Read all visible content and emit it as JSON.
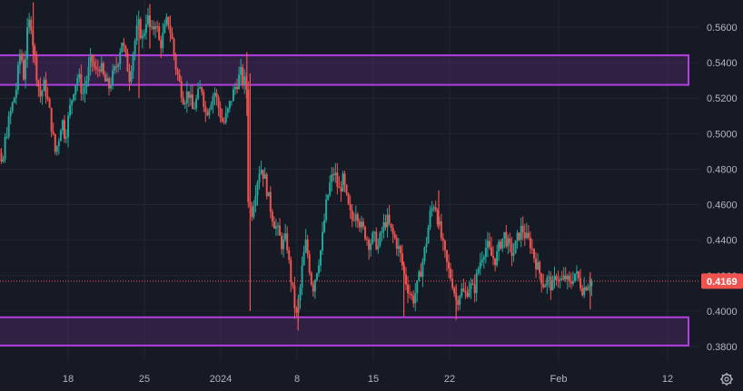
{
  "chart_data": {
    "type": "candlestick",
    "title": "",
    "colors": {
      "background": "#161a25",
      "grid": "#232632",
      "up": "#26a69a",
      "down": "#ef5350",
      "zone_fill": "#5b2a7a",
      "zone_border": "#b23fe0",
      "price_line": "#ef5350",
      "axis_text": "#b2b5be"
    },
    "y_axis": {
      "ylim": [
        0.37,
        0.575
      ],
      "ticks": [
        "0.5600",
        "0.5400",
        "0.5200",
        "0.5000",
        "0.4800",
        "0.4600",
        "0.4400",
        "0.4200",
        "0.4000",
        "0.3800"
      ],
      "tick_values": [
        0.56,
        0.54,
        0.52,
        0.5,
        0.48,
        0.46,
        0.44,
        0.42,
        0.4,
        0.38
      ],
      "position": "right"
    },
    "x_axis": {
      "ticks": [
        "18",
        "25",
        "2024",
        "8",
        "15",
        "22",
        "Feb",
        "12"
      ],
      "tick_days": [
        1,
        8,
        15,
        22,
        29,
        36,
        46,
        56
      ],
      "date_range_days": [
        -7,
        57
      ]
    },
    "last_price": {
      "label": "0.4169",
      "value": 0.4169
    },
    "zones": [
      {
        "name": "resistance-zone",
        "low": 0.5275,
        "high": 0.5442
      },
      {
        "name": "support-zone",
        "low": 0.3806,
        "high": 0.3965
      }
    ],
    "path": [
      [
        -7.0,
        0.468
      ],
      [
        -6.5,
        0.482
      ],
      [
        -6.0,
        0.495
      ],
      [
        -5.6,
        0.503
      ],
      [
        -5.2,
        0.491
      ],
      [
        -4.9,
        0.478
      ],
      [
        -4.6,
        0.497
      ],
      [
        -4.1,
        0.512
      ],
      [
        -3.6,
        0.525
      ],
      [
        -3.2,
        0.548
      ],
      [
        -2.9,
        0.532
      ],
      [
        -2.6,
        0.555
      ],
      [
        -2.3,
        0.566
      ],
      [
        -2.0,
        0.548
      ],
      [
        -1.7,
        0.533
      ],
      [
        -1.4,
        0.521
      ],
      [
        -1.0,
        0.528
      ],
      [
        -0.6,
        0.515
      ],
      [
        -0.3,
        0.502
      ],
      [
        0.0,
        0.489
      ],
      [
        0.3,
        0.497
      ],
      [
        0.6,
        0.509
      ],
      [
        0.9,
        0.498
      ],
      [
        1.3,
        0.513
      ],
      [
        1.7,
        0.526
      ],
      [
        2.1,
        0.533
      ],
      [
        2.5,
        0.522
      ],
      [
        2.9,
        0.531
      ],
      [
        3.3,
        0.543
      ],
      [
        3.7,
        0.534
      ],
      [
        4.1,
        0.539
      ],
      [
        4.5,
        0.53
      ],
      [
        4.9,
        0.526
      ],
      [
        5.3,
        0.533
      ],
      [
        5.7,
        0.54
      ],
      [
        6.1,
        0.553
      ],
      [
        6.4,
        0.544
      ],
      [
        6.8,
        0.532
      ],
      [
        7.2,
        0.549
      ],
      [
        7.6,
        0.562
      ],
      [
        8.0,
        0.553
      ],
      [
        8.4,
        0.567
      ],
      [
        8.8,
        0.556
      ],
      [
        9.2,
        0.564
      ],
      [
        9.6,
        0.549
      ],
      [
        10.0,
        0.558
      ],
      [
        10.3,
        0.565
      ],
      [
        10.7,
        0.553
      ],
      [
        11.0,
        0.539
      ],
      [
        11.4,
        0.528
      ],
      [
        11.8,
        0.519
      ],
      [
        12.2,
        0.524
      ],
      [
        12.6,
        0.513
      ],
      [
        13.0,
        0.52
      ],
      [
        13.4,
        0.527
      ],
      [
        13.8,
        0.511
      ],
      [
        14.2,
        0.518
      ],
      [
        14.6,
        0.524
      ],
      [
        15.0,
        0.514
      ],
      [
        15.4,
        0.505
      ],
      [
        15.8,
        0.512
      ],
      [
        16.2,
        0.521
      ],
      [
        16.6,
        0.528
      ],
      [
        17.0,
        0.534
      ],
      [
        17.3,
        0.527
      ],
      [
        17.5,
        0.534
      ],
      [
        17.7,
        0.462
      ],
      [
        18.0,
        0.455
      ],
      [
        18.4,
        0.47
      ],
      [
        18.8,
        0.482
      ],
      [
        19.2,
        0.475
      ],
      [
        19.6,
        0.462
      ],
      [
        20.0,
        0.451
      ],
      [
        20.4,
        0.445
      ],
      [
        20.8,
        0.437
      ],
      [
        21.2,
        0.441
      ],
      [
        21.5,
        0.423
      ],
      [
        21.8,
        0.41
      ],
      [
        22.1,
        0.396
      ],
      [
        22.4,
        0.409
      ],
      [
        22.7,
        0.428
      ],
      [
        23.0,
        0.439
      ],
      [
        23.3,
        0.425
      ],
      [
        23.6,
        0.412
      ],
      [
        24.0,
        0.424
      ],
      [
        24.4,
        0.436
      ],
      [
        24.8,
        0.458
      ],
      [
        25.2,
        0.472
      ],
      [
        25.6,
        0.479
      ],
      [
        26.0,
        0.467
      ],
      [
        26.4,
        0.474
      ],
      [
        26.8,
        0.46
      ],
      [
        27.2,
        0.451
      ],
      [
        27.6,
        0.458
      ],
      [
        28.0,
        0.448
      ],
      [
        28.4,
        0.444
      ],
      [
        28.8,
        0.438
      ],
      [
        29.2,
        0.442
      ],
      [
        29.6,
        0.436
      ],
      [
        30.0,
        0.446
      ],
      [
        30.4,
        0.452
      ],
      [
        30.8,
        0.445
      ],
      [
        31.2,
        0.44
      ],
      [
        31.6,
        0.433
      ],
      [
        32.0,
        0.42
      ],
      [
        32.4,
        0.412
      ],
      [
        32.8,
        0.406
      ],
      [
        33.2,
        0.414
      ],
      [
        33.6,
        0.425
      ],
      [
        34.0,
        0.438
      ],
      [
        34.4,
        0.455
      ],
      [
        34.8,
        0.462
      ],
      [
        35.2,
        0.448
      ],
      [
        35.6,
        0.435
      ],
      [
        36.0,
        0.424
      ],
      [
        36.4,
        0.417
      ],
      [
        36.8,
        0.405
      ],
      [
        37.2,
        0.412
      ],
      [
        37.6,
        0.409
      ],
      [
        38.0,
        0.415
      ],
      [
        38.4,
        0.411
      ],
      [
        38.8,
        0.424
      ],
      [
        39.2,
        0.433
      ],
      [
        39.6,
        0.437
      ],
      [
        40.0,
        0.431
      ],
      [
        40.4,
        0.429
      ],
      [
        40.8,
        0.438
      ],
      [
        41.2,
        0.443
      ],
      [
        41.6,
        0.436
      ],
      [
        42.0,
        0.432
      ],
      [
        42.4,
        0.441
      ],
      [
        42.8,
        0.447
      ],
      [
        43.2,
        0.441
      ],
      [
        43.6,
        0.438
      ],
      [
        44.0,
        0.429
      ],
      [
        44.4,
        0.422
      ],
      [
        44.8,
        0.415
      ],
      [
        45.2,
        0.418
      ],
      [
        45.6,
        0.413
      ],
      [
        46.0,
        0.421
      ],
      [
        46.4,
        0.416
      ],
      [
        46.8,
        0.419
      ],
      [
        47.2,
        0.414
      ],
      [
        47.6,
        0.422
      ],
      [
        48.0,
        0.418
      ],
      [
        48.4,
        0.412
      ],
      [
        48.8,
        0.416
      ],
      [
        49.2,
        0.417
      ]
    ],
    "spikes": [
      {
        "day": -2.2,
        "high": 0.574,
        "low": 0.54
      },
      {
        "day": 7.5,
        "high": 0.561,
        "low": 0.52
      },
      {
        "day": 8.5,
        "high": 0.573,
        "low": 0.548
      },
      {
        "day": 17.4,
        "high": 0.546,
        "low": 0.51
      },
      {
        "day": 17.7,
        "high": 0.534,
        "low": 0.4
      },
      {
        "day": 22.1,
        "high": 0.407,
        "low": 0.389
      },
      {
        "day": 31.8,
        "high": 0.428,
        "low": 0.397
      },
      {
        "day": 35.0,
        "high": 0.468,
        "low": 0.446
      },
      {
        "day": 36.6,
        "high": 0.414,
        "low": 0.395
      },
      {
        "day": 48.9,
        "high": 0.422,
        "low": 0.401
      }
    ],
    "candle_count": 330,
    "seed": 7
  },
  "ui": {
    "settings_icon": "gear-icon"
  }
}
